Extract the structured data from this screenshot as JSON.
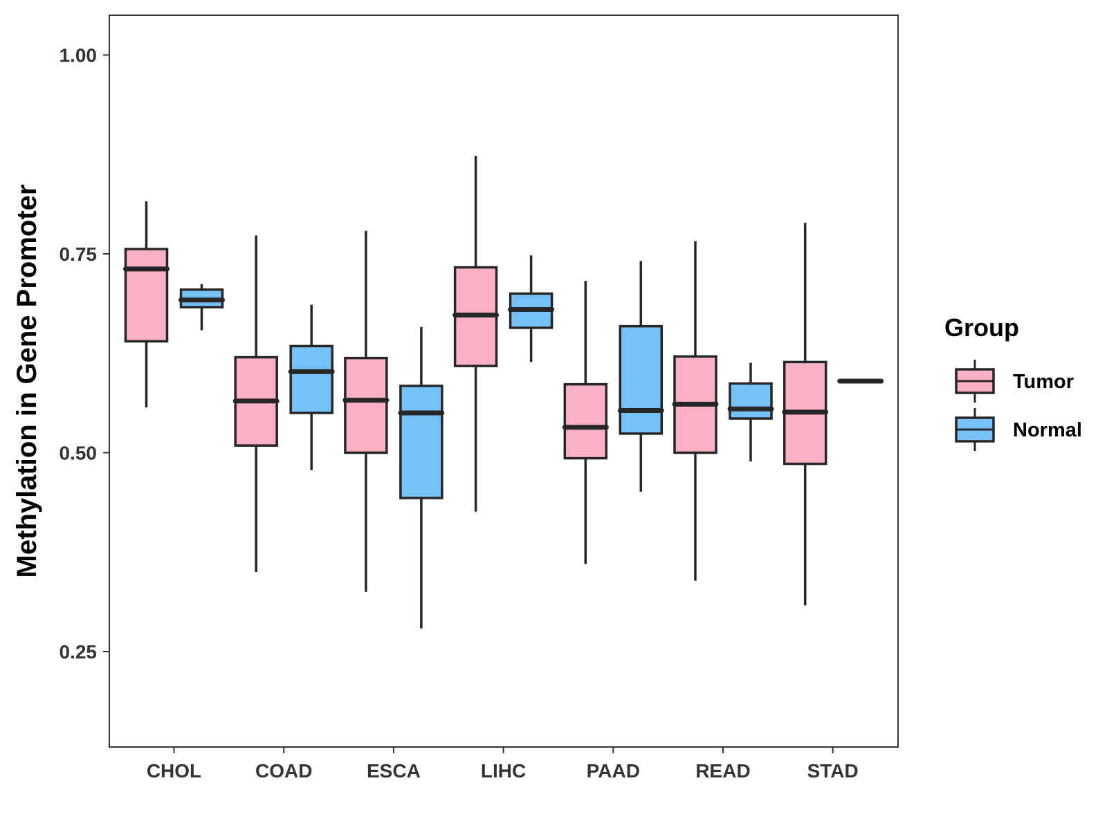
{
  "chart_data": {
    "type": "boxplot",
    "title": "",
    "xlabel": "",
    "ylabel": "Methylation in Gene Promoter",
    "ylim": [
      0.13,
      1.05
    ],
    "yticks": [
      0.25,
      0.5,
      0.75,
      1.0
    ],
    "ytick_labels": [
      "0.25",
      "0.50",
      "0.75",
      "1.00"
    ],
    "categories": [
      "CHOL",
      "COAD",
      "ESCA",
      "LIHC",
      "PAAD",
      "READ",
      "STAD"
    ],
    "legend": {
      "title": "Group",
      "position": "right",
      "entries": [
        {
          "name": "Tumor",
          "color": "#FBB1C3"
        },
        {
          "name": "Normal",
          "color": "#77C1F9"
        }
      ]
    },
    "series": [
      {
        "name": "Tumor",
        "color": "#FBB1C3",
        "boxes": [
          {
            "min": 0.557,
            "q1": 0.64,
            "median": 0.731,
            "q3": 0.756,
            "max": 0.816
          },
          {
            "min": 0.35,
            "q1": 0.509,
            "median": 0.565,
            "q3": 0.62,
            "max": 0.773
          },
          {
            "min": 0.325,
            "q1": 0.5,
            "median": 0.566,
            "q3": 0.619,
            "max": 0.779
          },
          {
            "min": 0.426,
            "q1": 0.609,
            "median": 0.673,
            "q3": 0.733,
            "max": 0.873
          },
          {
            "min": 0.36,
            "q1": 0.493,
            "median": 0.532,
            "q3": 0.586,
            "max": 0.716
          },
          {
            "min": 0.339,
            "q1": 0.5,
            "median": 0.561,
            "q3": 0.621,
            "max": 0.766
          },
          {
            "min": 0.308,
            "q1": 0.486,
            "median": 0.551,
            "q3": 0.614,
            "max": 0.789
          }
        ]
      },
      {
        "name": "Normal",
        "color": "#77C1F9",
        "boxes": [
          {
            "min": 0.654,
            "q1": 0.683,
            "median": 0.692,
            "q3": 0.705,
            "max": 0.712
          },
          {
            "min": 0.478,
            "q1": 0.55,
            "median": 0.602,
            "q3": 0.634,
            "max": 0.686
          },
          {
            "min": 0.279,
            "q1": 0.443,
            "median": 0.55,
            "q3": 0.584,
            "max": 0.658
          },
          {
            "min": 0.614,
            "q1": 0.657,
            "median": 0.68,
            "q3": 0.7,
            "max": 0.748
          },
          {
            "min": 0.451,
            "q1": 0.524,
            "median": 0.553,
            "q3": 0.659,
            "max": 0.741
          },
          {
            "min": 0.489,
            "q1": 0.543,
            "median": 0.555,
            "q3": 0.587,
            "max": 0.613
          },
          {
            "min": 0.59,
            "q1": 0.59,
            "median": 0.59,
            "q3": 0.59,
            "max": 0.59
          }
        ]
      }
    ]
  }
}
